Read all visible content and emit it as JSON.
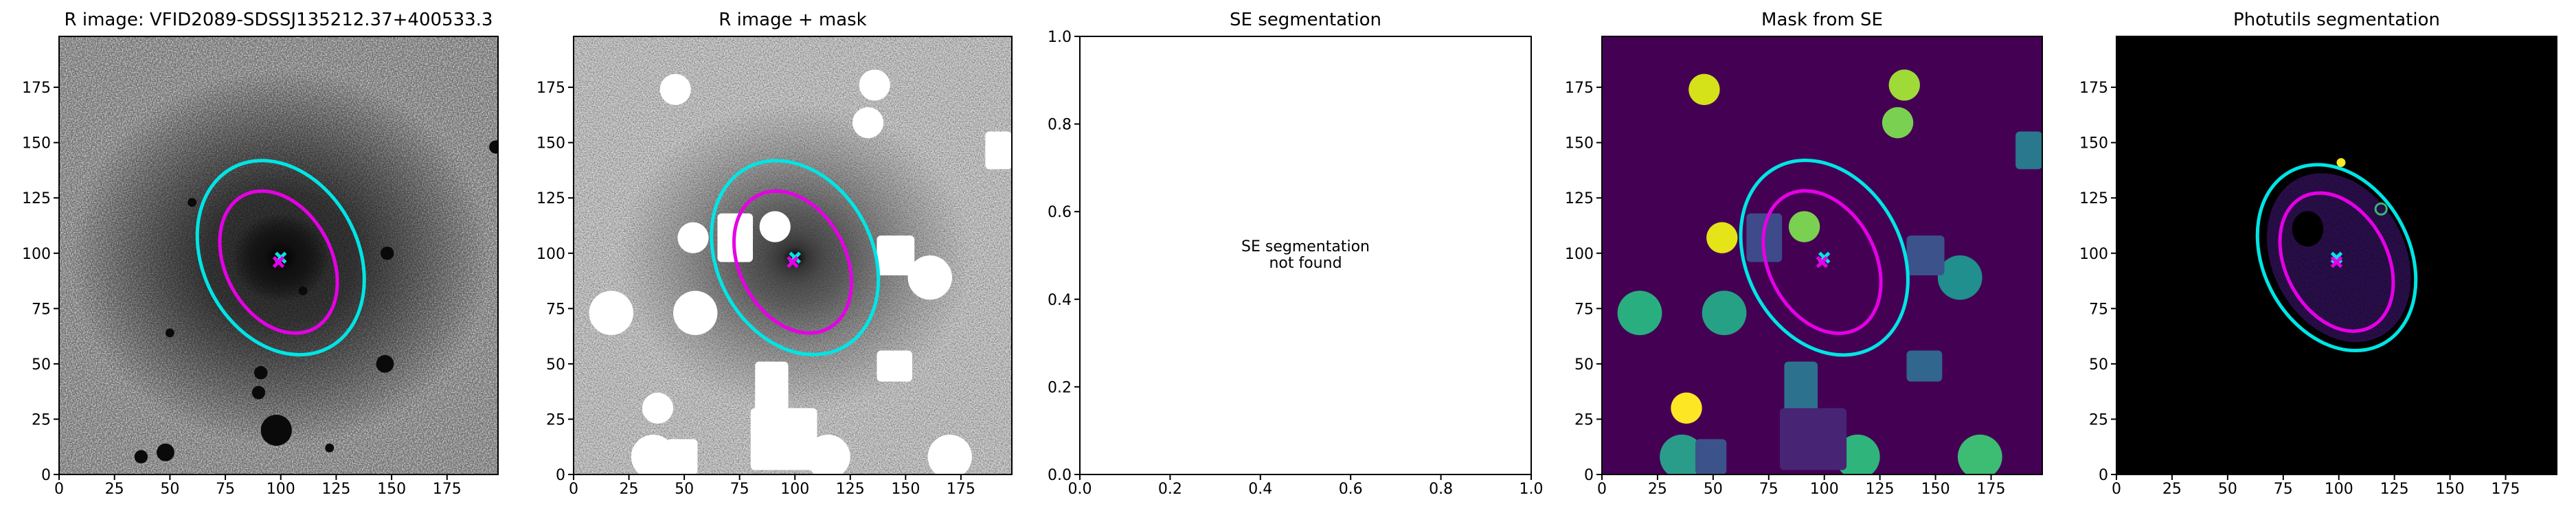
{
  "chart_data": [
    {
      "type": "image",
      "cmap": "gray_r",
      "title": "R image: VFID2089-SDSSJ135212.37+400533.3",
      "xlim": [
        0,
        198
      ],
      "ylim": [
        0,
        198
      ],
      "xticks": [
        0,
        25,
        50,
        75,
        100,
        125,
        150,
        175
      ],
      "yticks": [
        0,
        25,
        50,
        75,
        100,
        125,
        150,
        175
      ],
      "ellipses": [
        {
          "x": 100,
          "y": 98,
          "a": 46,
          "b": 35,
          "angle": 118,
          "color": "#00e5e5"
        },
        {
          "x": 99,
          "y": 96,
          "a": 34,
          "b": 24,
          "angle": 118,
          "color": "#e500e5"
        }
      ]
    },
    {
      "type": "image",
      "cmap": "gray_r_masked",
      "title": "R image + mask",
      "xlim": [
        0,
        198
      ],
      "ylim": [
        0,
        198
      ],
      "xticks": [
        0,
        25,
        50,
        75,
        100,
        125,
        150,
        175
      ],
      "yticks": [
        0,
        25,
        50,
        75,
        100,
        125,
        150,
        175
      ],
      "ellipses": [
        {
          "x": 100,
          "y": 98,
          "a": 46,
          "b": 35,
          "angle": 118,
          "color": "#00e5e5"
        },
        {
          "x": 99,
          "y": 96,
          "a": 34,
          "b": 24,
          "angle": 118,
          "color": "#e500e5"
        }
      ]
    },
    {
      "type": "empty",
      "title": "SE segmentation",
      "annotation": [
        "SE segmentation",
        "not found"
      ],
      "xlim": [
        0,
        1
      ],
      "ylim": [
        0,
        1
      ],
      "xticks": [
        {
          "value": 0,
          "label": "0.0"
        },
        {
          "value": 0.2,
          "label": "0.2"
        },
        {
          "value": 0.4,
          "label": "0.4"
        },
        {
          "value": 0.6,
          "label": "0.6"
        },
        {
          "value": 0.8,
          "label": "0.8"
        },
        {
          "value": 1,
          "label": "1.0"
        }
      ],
      "yticks": [
        {
          "value": 0,
          "label": "0.0"
        },
        {
          "value": 0.2,
          "label": "0.2"
        },
        {
          "value": 0.4,
          "label": "0.4"
        },
        {
          "value": 0.6,
          "label": "0.6"
        },
        {
          "value": 0.8,
          "label": "0.8"
        },
        {
          "value": 1,
          "label": "1.0"
        }
      ]
    },
    {
      "type": "image",
      "cmap": "viridis",
      "title": "Mask from SE",
      "xlim": [
        0,
        198
      ],
      "ylim": [
        0,
        198
      ],
      "xticks": [
        0,
        25,
        50,
        75,
        100,
        125,
        150,
        175
      ],
      "yticks": [
        0,
        25,
        50,
        75,
        100,
        125,
        150,
        175
      ],
      "ellipses": [
        {
          "x": 100,
          "y": 98,
          "a": 46,
          "b": 35,
          "angle": 118,
          "color": "#00e5e5"
        },
        {
          "x": 99,
          "y": 96,
          "a": 34,
          "b": 24,
          "angle": 118,
          "color": "#e500e5"
        }
      ]
    },
    {
      "type": "image",
      "cmap": "segmentation",
      "title": "Photutils segmentation",
      "xlim": [
        0,
        198
      ],
      "ylim": [
        0,
        198
      ],
      "xticks": [
        0,
        25,
        50,
        75,
        100,
        125,
        150,
        175
      ],
      "yticks": [
        0,
        25,
        50,
        75,
        100,
        125,
        150,
        175
      ],
      "ellipses": [
        {
          "x": 99,
          "y": 98,
          "a": 44,
          "b": 33,
          "angle": 118,
          "color": "#00e5e5"
        },
        {
          "x": 99,
          "y": 96,
          "a": 33,
          "b": 23,
          "angle": 118,
          "color": "#e500e5"
        }
      ]
    }
  ]
}
